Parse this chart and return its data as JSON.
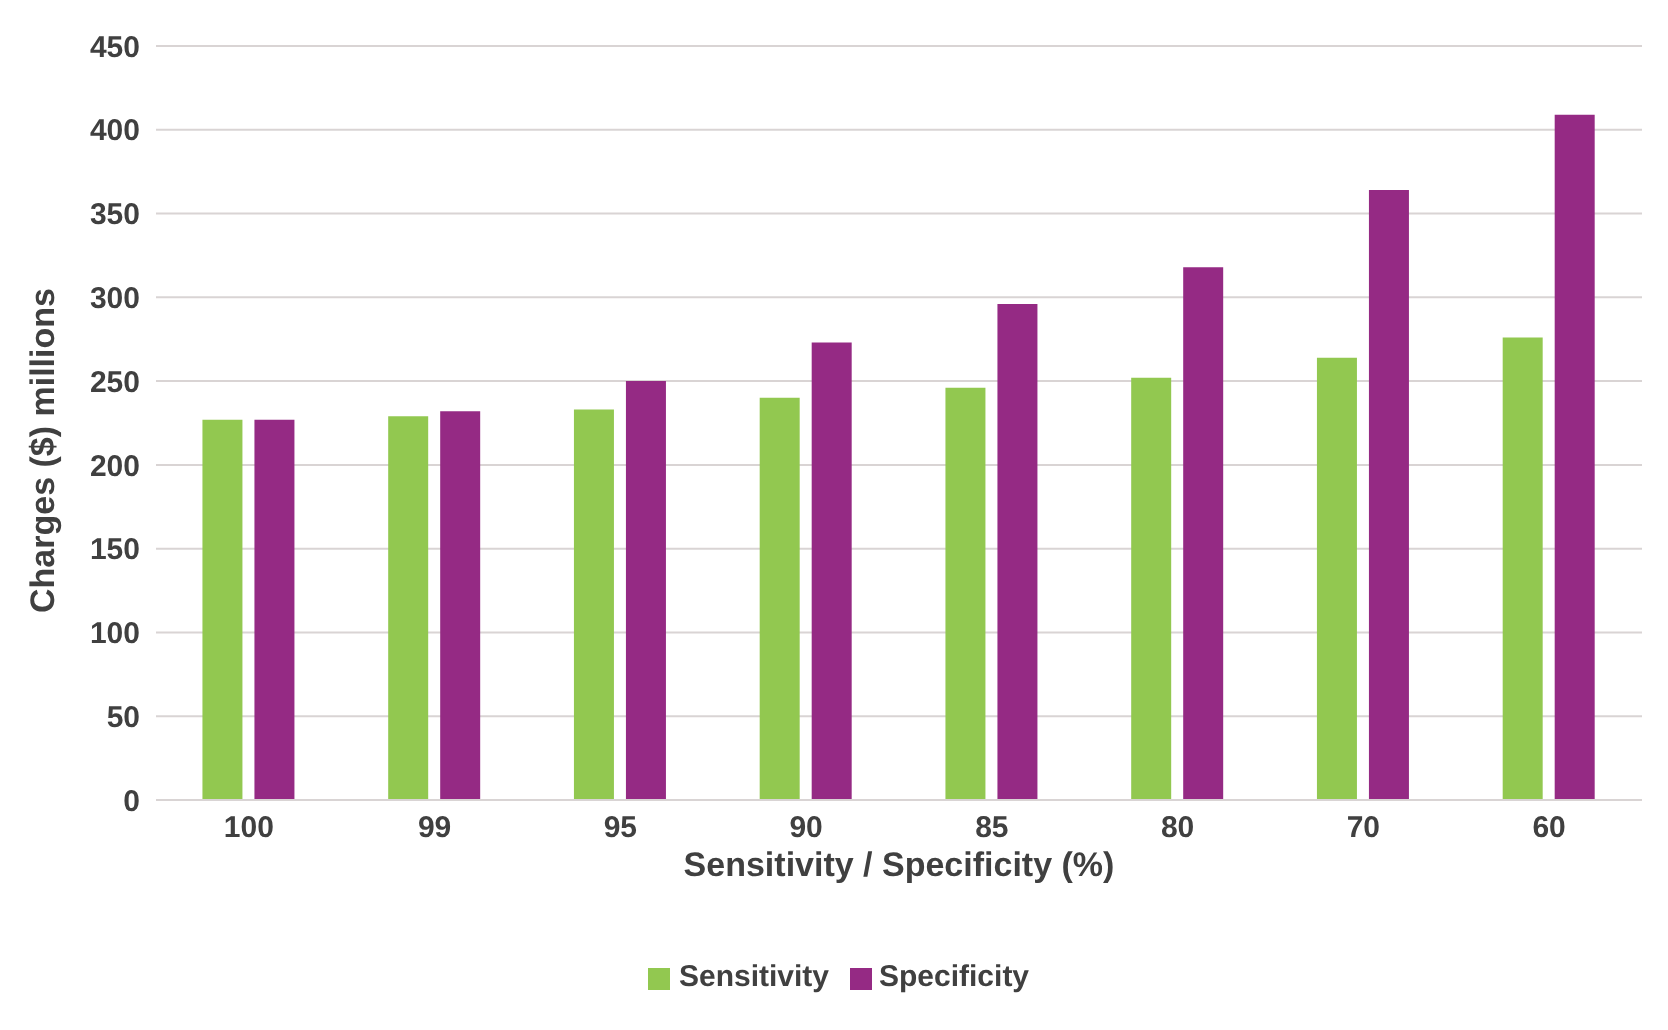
{
  "chart_data": {
    "type": "bar",
    "xlabel": "Sensitivity / Specificity (%)",
    "ylabel": "Charges ($) millions",
    "categories": [
      "100",
      "99",
      "95",
      "90",
      "85",
      "80",
      "70",
      "60"
    ],
    "series": [
      {
        "name": "Sensitivity",
        "color": "#92c850",
        "values": [
          227,
          229,
          233,
          240,
          246,
          252,
          264,
          276
        ]
      },
      {
        "name": "Specificity",
        "color": "#952a84",
        "values": [
          227,
          232,
          250,
          273,
          296,
          318,
          364,
          409
        ]
      }
    ],
    "ylim": [
      0,
      450
    ],
    "yticks": [
      0,
      50,
      100,
      150,
      200,
      250,
      300,
      350,
      400,
      450
    ],
    "grid": "y",
    "legend": "bottom"
  }
}
